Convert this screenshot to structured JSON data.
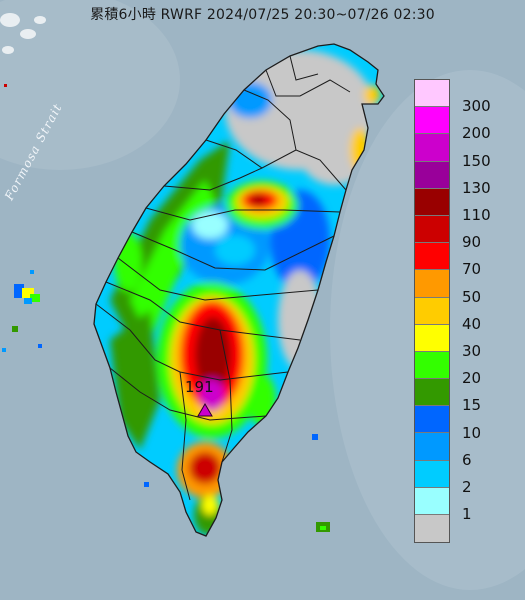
{
  "title": "累積6小時 RWRF 2024/07/25 20:30~07/26 02:30",
  "strait_label": "Formosa Strait",
  "peak": {
    "value": "191",
    "marker": "triangle-marker-icon"
  },
  "colors": {
    "sea": "#9eb5c4",
    "land_dry": "#c8c8c8",
    "border": "#1c1c1c"
  },
  "legend": {
    "items": [
      {
        "label": "300",
        "color": "#ffc8ff"
      },
      {
        "label": "200",
        "color": "#ff00ff"
      },
      {
        "label": "150",
        "color": "#cc00cc"
      },
      {
        "label": "130",
        "color": "#99009a"
      },
      {
        "label": "110",
        "color": "#990000"
      },
      {
        "label": "90",
        "color": "#cc0000"
      },
      {
        "label": "70",
        "color": "#ff0000"
      },
      {
        "label": "50",
        "color": "#ff9900"
      },
      {
        "label": "40",
        "color": "#ffcc00"
      },
      {
        "label": "30",
        "color": "#ffff00"
      },
      {
        "label": "20",
        "color": "#33ff00"
      },
      {
        "label": "15",
        "color": "#339900"
      },
      {
        "label": "10",
        "color": "#0066ff"
      },
      {
        "label": "6",
        "color": "#0099ff"
      },
      {
        "label": "2",
        "color": "#00ccff"
      },
      {
        "label": "1",
        "color": "#99ffff"
      },
      {
        "label": "",
        "color": "#c8c8c8"
      }
    ]
  }
}
